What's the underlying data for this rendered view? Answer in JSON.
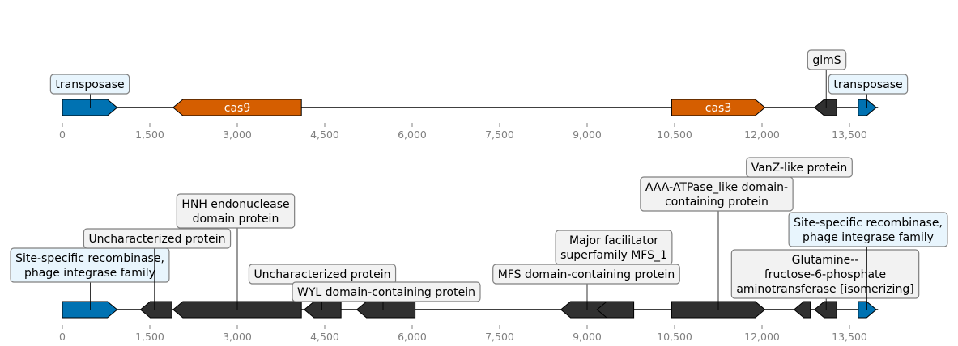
{
  "colors": {
    "transposase": "#0072b2",
    "cas": "#d55e00",
    "other": "#303030",
    "callout_blue_bg": "#e8f5fd",
    "callout_grey_bg": "#f2f2f2",
    "callout_border": "#808080",
    "backbone": "#000000",
    "tick": "#808080"
  },
  "tracks": [
    {
      "ticks": [
        "0",
        "1,500",
        "3,000",
        "4,500",
        "6,000",
        "7,500",
        "9,000",
        "10,500",
        "12,000",
        "13,500"
      ],
      "genes": [
        {
          "start": 0,
          "end": 940,
          "strand": 1,
          "kind": "transposase"
        },
        {
          "start": 1900,
          "end": 4100,
          "strand": -1,
          "kind": "cas",
          "label": "cas9"
        },
        {
          "start": 10450,
          "end": 12050,
          "strand": 1,
          "kind": "cas",
          "label": "cas3"
        },
        {
          "start": 12900,
          "end": 13280,
          "strand": -1,
          "kind": "other"
        },
        {
          "start": 13650,
          "end": 13960,
          "strand": 1,
          "kind": "transposase"
        }
      ],
      "callouts": [
        {
          "text": [
            "transposase"
          ],
          "anchor": 480,
          "style": "blue"
        },
        {
          "text": [
            "glmS"
          ],
          "anchor": 13100,
          "style": "grey"
        },
        {
          "text": [
            "transposase"
          ],
          "anchor": 13800,
          "style": "blue"
        }
      ]
    },
    {
      "ticks": [
        "0",
        "1,500",
        "3,000",
        "4,500",
        "6,000",
        "7,500",
        "9,000",
        "10,500",
        "12,000",
        "13,500"
      ],
      "genes": [
        {
          "start": 0,
          "end": 940,
          "strand": 1,
          "kind": "transposase"
        },
        {
          "start": 1340,
          "end": 1880,
          "strand": -1,
          "kind": "other"
        },
        {
          "start": 1900,
          "end": 4100,
          "strand": -1,
          "kind": "other"
        },
        {
          "start": 4150,
          "end": 4780,
          "strand": -1,
          "kind": "other"
        },
        {
          "start": 5050,
          "end": 6050,
          "strand": -1,
          "kind": "other"
        },
        {
          "start": 8550,
          "end": 9480,
          "strand": -1,
          "kind": "other"
        },
        {
          "start": 9170,
          "end": 9800,
          "strand": -1,
          "kind": "other"
        },
        {
          "start": 10450,
          "end": 12050,
          "strand": 1,
          "kind": "other"
        },
        {
          "start": 12550,
          "end": 12830,
          "strand": -1,
          "kind": "other"
        },
        {
          "start": 12900,
          "end": 13280,
          "strand": -1,
          "kind": "other"
        },
        {
          "start": 13650,
          "end": 13960,
          "strand": 1,
          "kind": "transposase"
        }
      ],
      "callouts": [
        {
          "text": [
            "Site-specific recombinase,",
            "phage integrase family"
          ],
          "anchor": 480,
          "style": "blue"
        },
        {
          "text": [
            "Uncharacterized protein"
          ],
          "anchor": 1580,
          "style": "grey"
        },
        {
          "text": [
            "HNH endonuclease",
            "domain protein"
          ],
          "anchor": 3000,
          "style": "grey"
        },
        {
          "text": [
            "Uncharacterized protein"
          ],
          "anchor": 4450,
          "style": "grey"
        },
        {
          "text": [
            "WYL domain-containing protein"
          ],
          "anchor": 5500,
          "style": "grey"
        },
        {
          "text": [
            "MFS domain-containing protein"
          ],
          "anchor": 9000,
          "style": "grey"
        },
        {
          "text": [
            "Major facilitator",
            "superfamily MFS_1"
          ],
          "anchor": 9480,
          "style": "grey"
        },
        {
          "text": [
            "AAA-ATPase_like domain-",
            "containing protein"
          ],
          "anchor": 11250,
          "style": "grey"
        },
        {
          "text": [
            "VanZ-like protein"
          ],
          "anchor": 12700,
          "style": "grey"
        },
        {
          "text": [
            "Glutamine--",
            "fructose-6-phosphate",
            "aminotransferase [isomerizing]"
          ],
          "anchor": 13100,
          "style": "grey"
        },
        {
          "text": [
            "Site-specific recombinase,",
            "phage integrase family"
          ],
          "anchor": 13800,
          "style": "blue"
        }
      ]
    }
  ]
}
